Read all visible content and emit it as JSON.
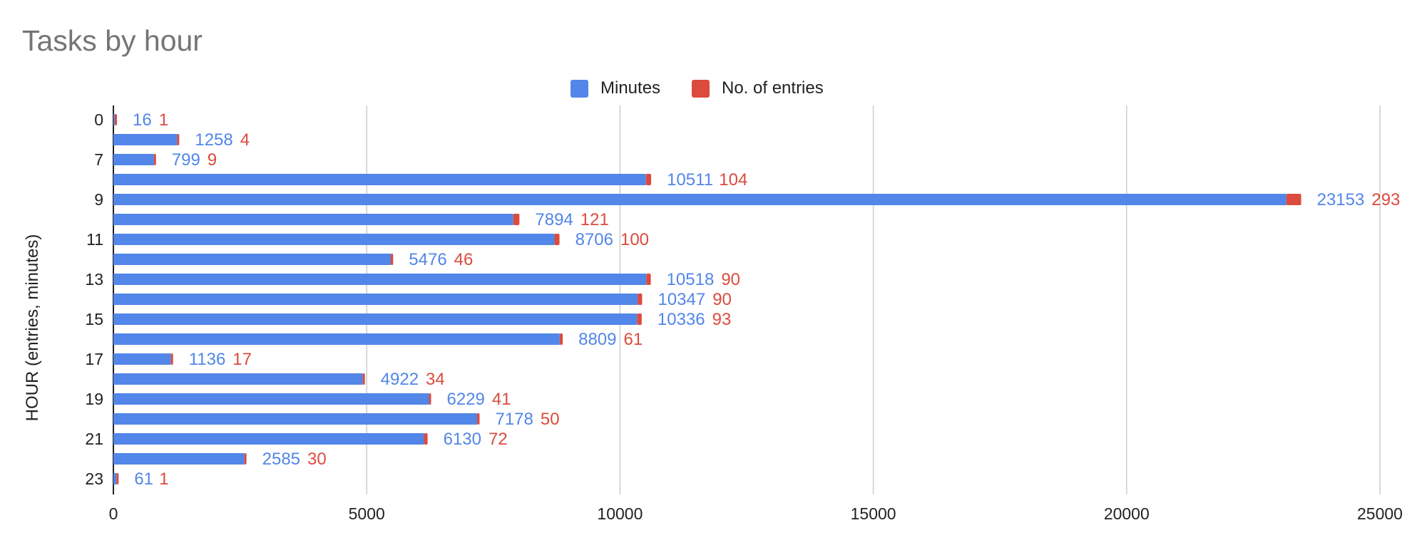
{
  "chart_data": {
    "type": "bar",
    "orientation": "horizontal",
    "stacked": true,
    "title": "Tasks by hour",
    "ylabel": "HOUR  (entries, minutes)",
    "xlabel": "",
    "xlim": [
      0,
      25000
    ],
    "x_ticks": [
      "0",
      "5000",
      "10000",
      "15000",
      "20000",
      "25000"
    ],
    "categories": [
      "0",
      "",
      "7",
      "",
      "9",
      "",
      "11",
      "",
      "13",
      "",
      "15",
      "",
      "17",
      "",
      "19",
      "",
      "21",
      "",
      "23"
    ],
    "series": [
      {
        "name": "Minutes",
        "color": "#5286e8",
        "values": [
          16,
          1258,
          799,
          10511,
          23153,
          7894,
          8706,
          5476,
          10518,
          10347,
          10336,
          8809,
          1136,
          4922,
          6229,
          7178,
          6130,
          2585,
          61
        ]
      },
      {
        "name": "No. of entries",
        "color": "#db4b3e",
        "values": [
          1,
          4,
          9,
          104,
          293,
          121,
          100,
          46,
          90,
          90,
          93,
          61,
          17,
          34,
          41,
          50,
          72,
          30,
          1
        ]
      }
    ],
    "legend_position": "top",
    "grid": "vertical"
  }
}
